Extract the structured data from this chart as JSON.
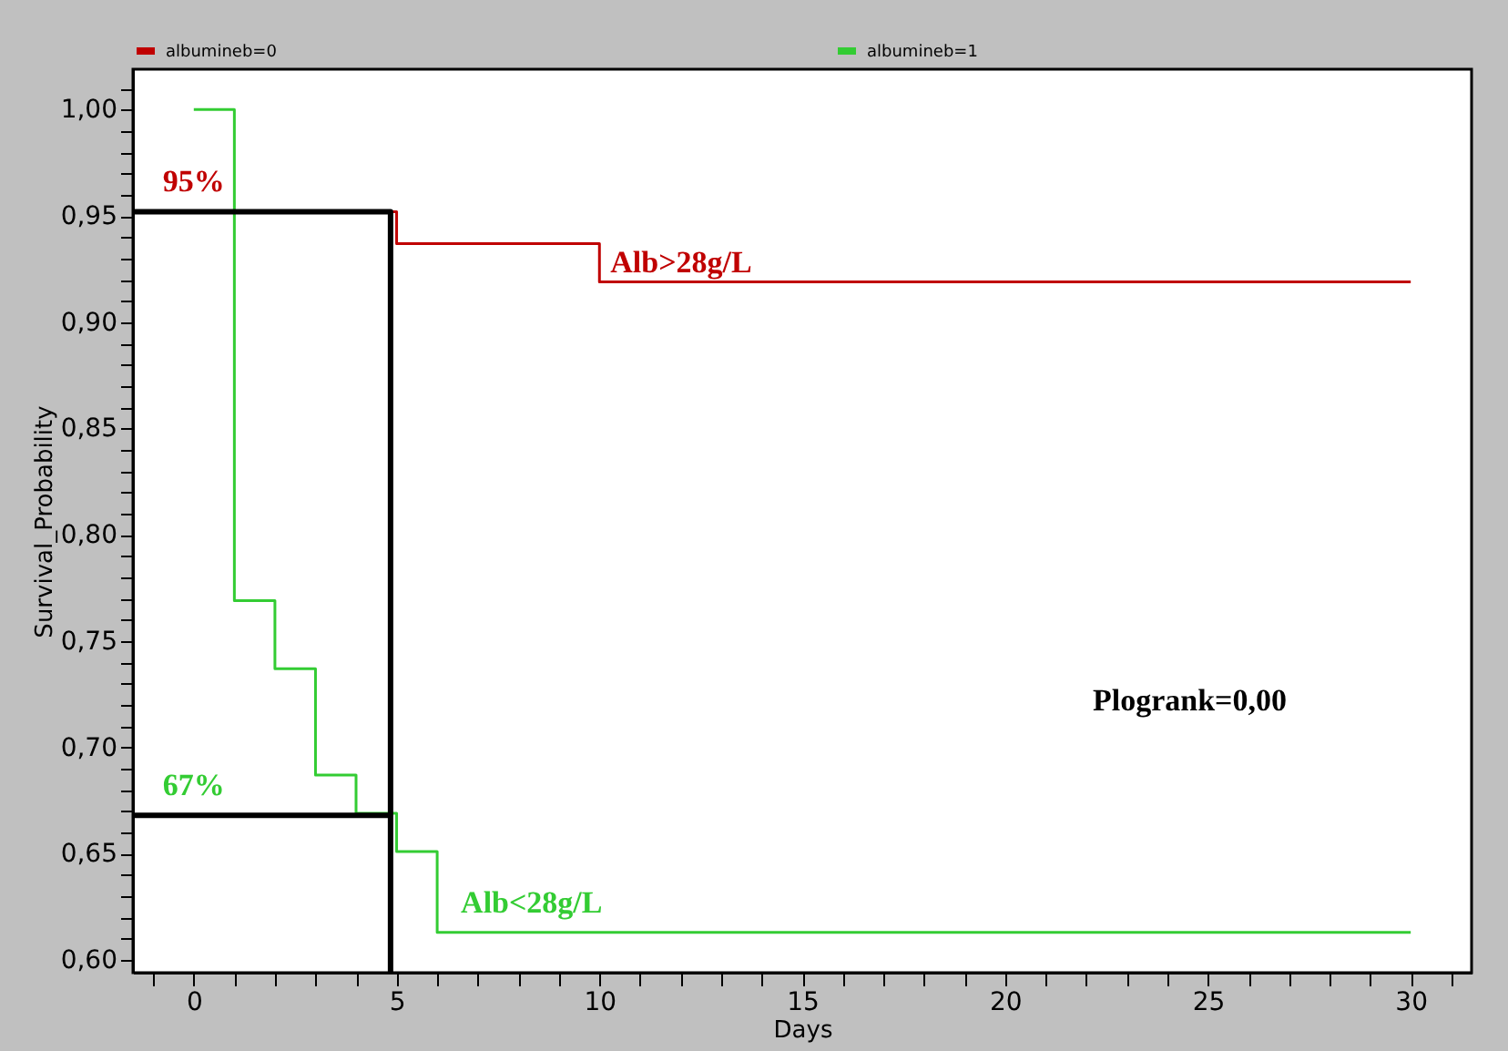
{
  "chart_data": {
    "type": "step",
    "xlabel": "Days",
    "ylabel": "Survival_Probability",
    "xlim": [
      -1.5,
      31.5
    ],
    "ylim": [
      0.594,
      1.019
    ],
    "xticks": [
      {
        "value": -1,
        "label": null
      },
      0,
      {
        "value": 1,
        "label": null
      },
      {
        "value": 2,
        "label": null
      },
      {
        "value": 3,
        "label": null
      },
      {
        "value": 4,
        "label": null
      },
      5,
      {
        "value": 6,
        "label": null
      },
      {
        "value": 7,
        "label": null
      },
      {
        "value": 8,
        "label": null
      },
      {
        "value": 9,
        "label": null
      },
      10,
      {
        "value": 11,
        "label": null
      },
      {
        "value": 12,
        "label": null
      },
      {
        "value": 13,
        "label": null
      },
      {
        "value": 14,
        "label": null
      },
      15,
      {
        "value": 16,
        "label": null
      },
      {
        "value": 17,
        "label": null
      },
      {
        "value": 18,
        "label": null
      },
      {
        "value": 19,
        "label": null
      },
      20,
      {
        "value": 21,
        "label": null
      },
      {
        "value": 22,
        "label": null
      },
      {
        "value": 23,
        "label": null
      },
      {
        "value": 24,
        "label": null
      },
      25,
      {
        "value": 26,
        "label": null
      },
      {
        "value": 27,
        "label": null
      },
      {
        "value": 28,
        "label": null
      },
      {
        "value": 29,
        "label": null
      },
      30,
      {
        "value": 31,
        "label": null
      }
    ],
    "yticks": [
      {
        "value": 0.6,
        "label": "0,60"
      },
      {
        "value": 0.61,
        "label": null
      },
      {
        "value": 0.62,
        "label": null
      },
      {
        "value": 0.63,
        "label": null
      },
      {
        "value": 0.64,
        "label": null
      },
      {
        "value": 0.65,
        "label": "0,65"
      },
      {
        "value": 0.66,
        "label": null
      },
      {
        "value": 0.67,
        "label": null
      },
      {
        "value": 0.68,
        "label": null
      },
      {
        "value": 0.69,
        "label": null
      },
      {
        "value": 0.7,
        "label": "0,70"
      },
      {
        "value": 0.71,
        "label": null
      },
      {
        "value": 0.72,
        "label": null
      },
      {
        "value": 0.73,
        "label": null
      },
      {
        "value": 0.74,
        "label": null
      },
      {
        "value": 0.75,
        "label": "0,75"
      },
      {
        "value": 0.76,
        "label": null
      },
      {
        "value": 0.77,
        "label": null
      },
      {
        "value": 0.78,
        "label": null
      },
      {
        "value": 0.79,
        "label": null
      },
      {
        "value": 0.8,
        "label": "0,80"
      },
      {
        "value": 0.81,
        "label": null
      },
      {
        "value": 0.82,
        "label": null
      },
      {
        "value": 0.83,
        "label": null
      },
      {
        "value": 0.84,
        "label": null
      },
      {
        "value": 0.85,
        "label": "0,85"
      },
      {
        "value": 0.86,
        "label": null
      },
      {
        "value": 0.87,
        "label": null
      },
      {
        "value": 0.88,
        "label": null
      },
      {
        "value": 0.89,
        "label": null
      },
      {
        "value": 0.9,
        "label": "0,90"
      },
      {
        "value": 0.91,
        "label": null
      },
      {
        "value": 0.92,
        "label": null
      },
      {
        "value": 0.93,
        "label": null
      },
      {
        "value": 0.94,
        "label": null
      },
      {
        "value": 0.95,
        "label": "0,95"
      },
      {
        "value": 0.96,
        "label": null
      },
      {
        "value": 0.97,
        "label": null
      },
      {
        "value": 0.98,
        "label": null
      },
      {
        "value": 0.99,
        "label": null
      },
      {
        "value": 1.0,
        "label": "1,00"
      },
      {
        "value": 1.01,
        "label": null
      }
    ],
    "legend": "top",
    "grid": false,
    "series": [
      {
        "name": "albumineb=0",
        "color": "#c00000",
        "x": [
          0,
          5,
          10,
          30
        ],
        "values": [
          0.952,
          0.937,
          0.919,
          0.919
        ]
      },
      {
        "name": "albumineb=1",
        "color": "#33cc33",
        "x": [
          0,
          1,
          2,
          3,
          4,
          5,
          6,
          30
        ],
        "values": [
          1.0,
          0.769,
          0.737,
          0.687,
          0.669,
          0.651,
          0.613,
          0.613
        ]
      },
      {
        "type": "line",
        "color": "#000000",
        "x": [
          -1.5,
          4.85,
          4.85
        ],
        "values": [
          0.952,
          0.952,
          0.594
        ]
      },
      {
        "type": "line",
        "color": "#000000",
        "x": [
          -1.5,
          4.85
        ],
        "values": [
          0.668,
          0.668
        ]
      }
    ],
    "annotations": [
      {
        "text": "95%",
        "x": 0,
        "y": 0.952
      },
      {
        "text": "67%",
        "x": 0,
        "y": 0.668
      },
      {
        "text": "Alb>28g/L",
        "x": 10,
        "y": 0.919
      },
      {
        "text": "Alb<28g/L",
        "x": 6,
        "y": 0.613
      },
      "Plogrank=0,00"
    ]
  }
}
